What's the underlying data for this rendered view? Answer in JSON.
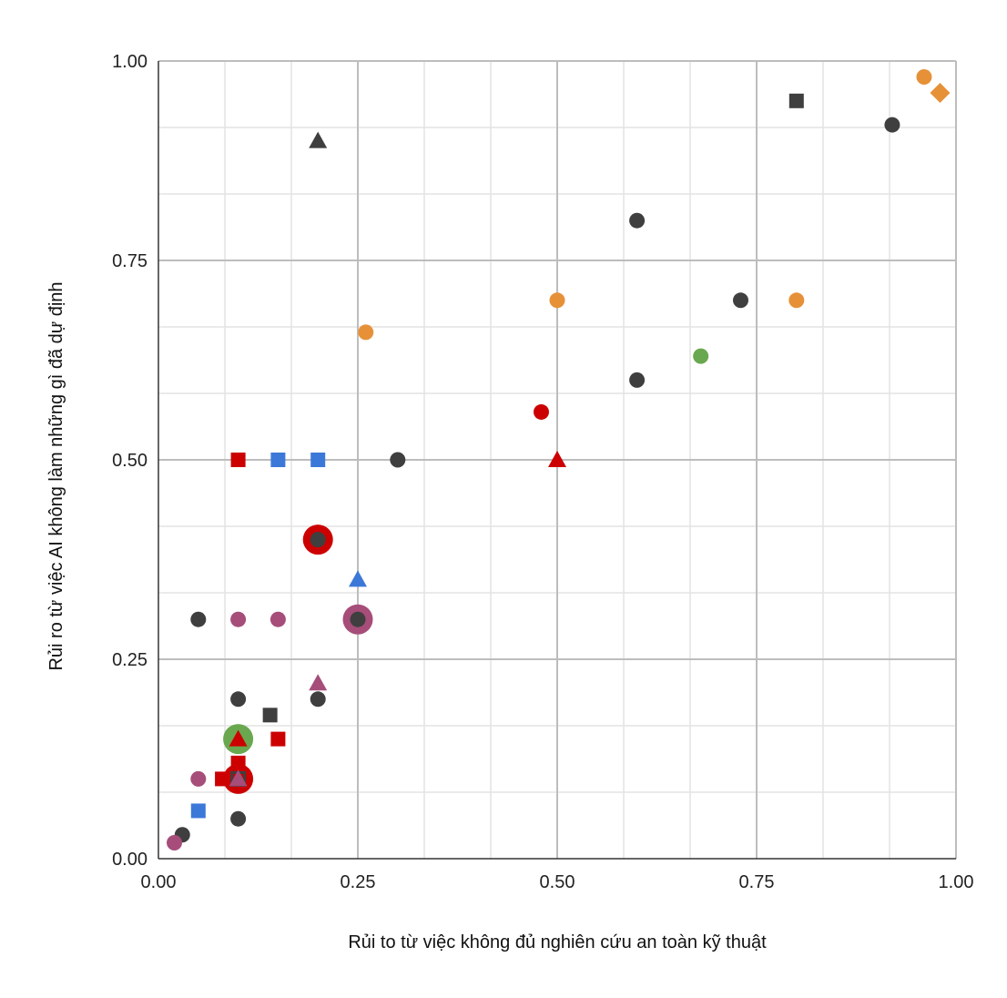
{
  "chart_data": {
    "type": "scatter",
    "title": "",
    "xlabel": "Rủi to từ việc không đủ nghiên cứu an toàn kỹ thuật",
    "ylabel": "Rủi ro từ việc AI không làm những gì đã dự định",
    "xlim": [
      0,
      1
    ],
    "ylim": [
      0,
      1
    ],
    "grid": true,
    "x_ticks": [
      "0.00",
      "0.25",
      "0.50",
      "0.75",
      "1.00"
    ],
    "y_ticks": [
      "0.00",
      "0.25",
      "0.50",
      "0.75",
      "1.00"
    ],
    "colors": {
      "dark": "#3f3f3f",
      "red": "#cc0000",
      "blue": "#3c78d8",
      "orange": "#e69138",
      "green": "#6aa84f",
      "purple": "#a64d79"
    },
    "points": [
      {
        "x": 0.1,
        "y": 0.1,
        "shape": "circle-big",
        "color": "red"
      },
      {
        "x": 0.2,
        "y": 0.4,
        "shape": "circle-big",
        "color": "red"
      },
      {
        "x": 0.25,
        "y": 0.3,
        "shape": "circle-big",
        "color": "purple"
      },
      {
        "x": 0.1,
        "y": 0.15,
        "shape": "circle-big",
        "color": "green"
      },
      {
        "x": 0.03,
        "y": 0.03,
        "shape": "circle",
        "color": "dark"
      },
      {
        "x": 0.05,
        "y": 0.3,
        "shape": "circle",
        "color": "dark"
      },
      {
        "x": 0.1,
        "y": 0.05,
        "shape": "circle",
        "color": "dark"
      },
      {
        "x": 0.1,
        "y": 0.2,
        "shape": "circle",
        "color": "dark"
      },
      {
        "x": 0.2,
        "y": 0.2,
        "shape": "circle",
        "color": "dark"
      },
      {
        "x": 0.2,
        "y": 0.4,
        "shape": "circle",
        "color": "dark"
      },
      {
        "x": 0.25,
        "y": 0.3,
        "shape": "circle",
        "color": "dark"
      },
      {
        "x": 0.3,
        "y": 0.5,
        "shape": "circle",
        "color": "dark"
      },
      {
        "x": 0.6,
        "y": 0.6,
        "shape": "circle",
        "color": "dark"
      },
      {
        "x": 0.6,
        "y": 0.8,
        "shape": "circle",
        "color": "dark"
      },
      {
        "x": 0.73,
        "y": 0.7,
        "shape": "circle",
        "color": "dark"
      },
      {
        "x": 0.92,
        "y": 0.92,
        "shape": "circle",
        "color": "dark"
      },
      {
        "x": 0.02,
        "y": 0.02,
        "shape": "circle",
        "color": "purple"
      },
      {
        "x": 0.05,
        "y": 0.1,
        "shape": "circle",
        "color": "purple"
      },
      {
        "x": 0.1,
        "y": 0.3,
        "shape": "circle",
        "color": "purple"
      },
      {
        "x": 0.15,
        "y": 0.3,
        "shape": "circle",
        "color": "purple"
      },
      {
        "x": 0.26,
        "y": 0.66,
        "shape": "circle",
        "color": "orange"
      },
      {
        "x": 0.5,
        "y": 0.7,
        "shape": "circle",
        "color": "orange"
      },
      {
        "x": 0.8,
        "y": 0.7,
        "shape": "circle",
        "color": "orange"
      },
      {
        "x": 0.96,
        "y": 0.98,
        "shape": "circle",
        "color": "orange"
      },
      {
        "x": 0.48,
        "y": 0.56,
        "shape": "circle",
        "color": "red"
      },
      {
        "x": 0.68,
        "y": 0.63,
        "shape": "circle",
        "color": "green"
      },
      {
        "x": 0.1,
        "y": 0.5,
        "shape": "square",
        "color": "red"
      },
      {
        "x": 0.15,
        "y": 0.15,
        "shape": "square",
        "color": "red"
      },
      {
        "x": 0.08,
        "y": 0.1,
        "shape": "square",
        "color": "red"
      },
      {
        "x": 0.1,
        "y": 0.12,
        "shape": "square",
        "color": "red"
      },
      {
        "x": 0.15,
        "y": 0.5,
        "shape": "square",
        "color": "blue"
      },
      {
        "x": 0.2,
        "y": 0.5,
        "shape": "square",
        "color": "blue"
      },
      {
        "x": 0.05,
        "y": 0.06,
        "shape": "square",
        "color": "blue"
      },
      {
        "x": 0.14,
        "y": 0.18,
        "shape": "square",
        "color": "dark"
      },
      {
        "x": 0.1,
        "y": 0.1,
        "shape": "square-hollow",
        "color": "dark"
      },
      {
        "x": 0.8,
        "y": 0.95,
        "shape": "square",
        "color": "dark"
      },
      {
        "x": 0.2,
        "y": 0.9,
        "shape": "triangle",
        "color": "dark"
      },
      {
        "x": 0.25,
        "y": 0.35,
        "shape": "triangle",
        "color": "blue"
      },
      {
        "x": 0.5,
        "y": 0.5,
        "shape": "triangle",
        "color": "red"
      },
      {
        "x": 0.2,
        "y": 0.22,
        "shape": "triangle",
        "color": "purple"
      },
      {
        "x": 0.1,
        "y": 0.15,
        "shape": "triangle",
        "color": "red"
      },
      {
        "x": 0.1,
        "y": 0.1,
        "shape": "triangle",
        "color": "purple"
      },
      {
        "x": 0.98,
        "y": 0.96,
        "shape": "diamond",
        "color": "orange"
      }
    ]
  }
}
